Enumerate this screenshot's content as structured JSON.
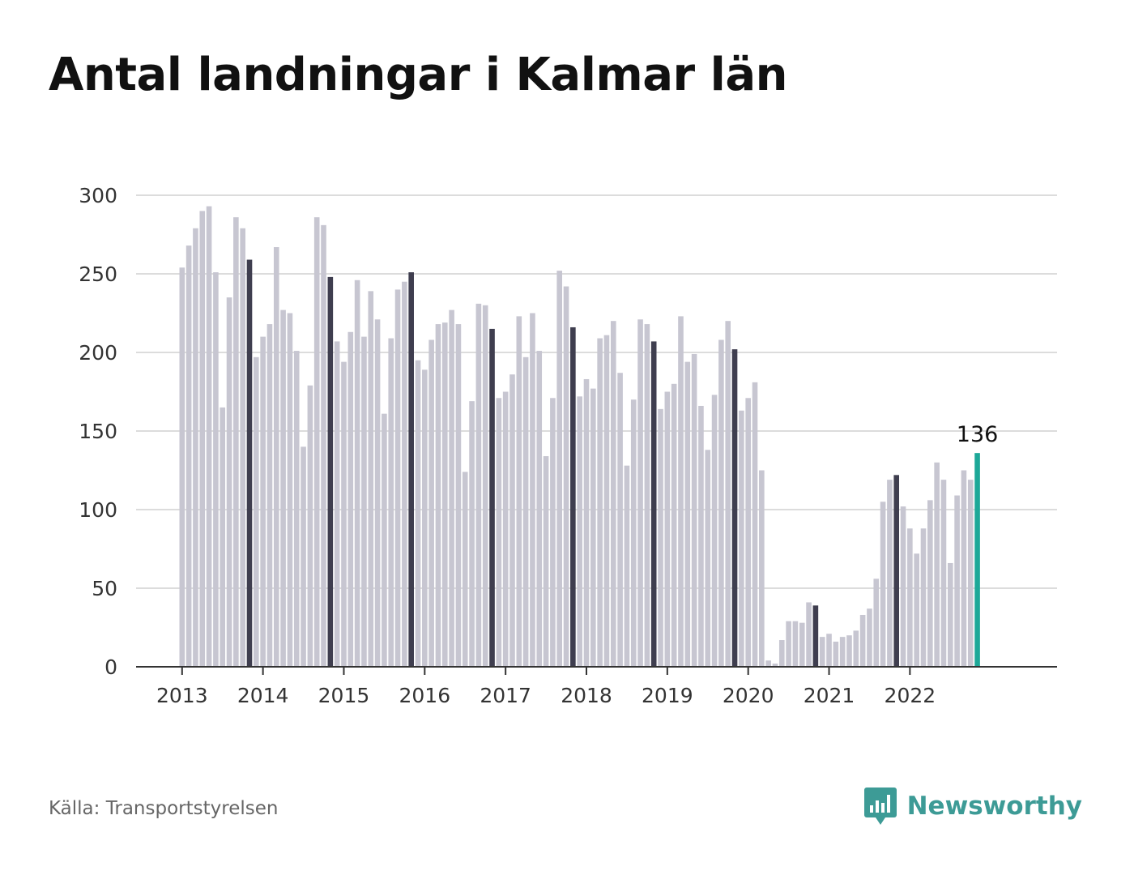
{
  "title": "Antal landningar i Kalmar län",
  "source": "Källa: Transportstyrelsen",
  "brand": {
    "name": "Newsworthy",
    "icon": "newsworthy-logo-icon",
    "color": "#3d9b96"
  },
  "colors": {
    "bar_default": "#c7c6d1",
    "bar_november": "#3f3e4f",
    "bar_latest": "#1da898",
    "grid": "#dcdcdc",
    "axis": "#333333"
  },
  "chart_data": {
    "type": "bar",
    "title": "Antal landningar i Kalmar län",
    "xlabel": "",
    "ylabel": "",
    "ylim": [
      0,
      300
    ],
    "y_ticks": [
      "0",
      "50",
      "100",
      "150",
      "200",
      "250",
      "300"
    ],
    "x_tick_labels": [
      "2013",
      "2014",
      "2015",
      "2016",
      "2017",
      "2018",
      "2019",
      "2020",
      "2021",
      "2022"
    ],
    "grid": true,
    "legend": "none",
    "start": "2013-01",
    "frequency": "monthly",
    "highlight": "November of each year in dark color; last bar in teal",
    "annotation": {
      "label": "136",
      "value": 136,
      "at": "2022-11"
    },
    "values": [
      254,
      268,
      279,
      290,
      293,
      251,
      165,
      235,
      286,
      279,
      259,
      197,
      210,
      218,
      267,
      227,
      225,
      201,
      140,
      179,
      286,
      281,
      248,
      207,
      194,
      213,
      246,
      210,
      239,
      221,
      161,
      209,
      240,
      245,
      251,
      195,
      189,
      208,
      218,
      219,
      227,
      218,
      124,
      169,
      231,
      230,
      215,
      171,
      175,
      186,
      223,
      197,
      225,
      201,
      134,
      171,
      252,
      242,
      216,
      172,
      183,
      177,
      209,
      211,
      220,
      187,
      128,
      170,
      221,
      218,
      207,
      164,
      175,
      180,
      223,
      194,
      199,
      166,
      138,
      173,
      208,
      220,
      202,
      163,
      171,
      181,
      125,
      4,
      2,
      17,
      29,
      29,
      28,
      41,
      39,
      19,
      21,
      16,
      19,
      20,
      23,
      33,
      37,
      56,
      105,
      119,
      122,
      102,
      88,
      72,
      88,
      106,
      130,
      119,
      66,
      109,
      125,
      119,
      136
    ]
  }
}
